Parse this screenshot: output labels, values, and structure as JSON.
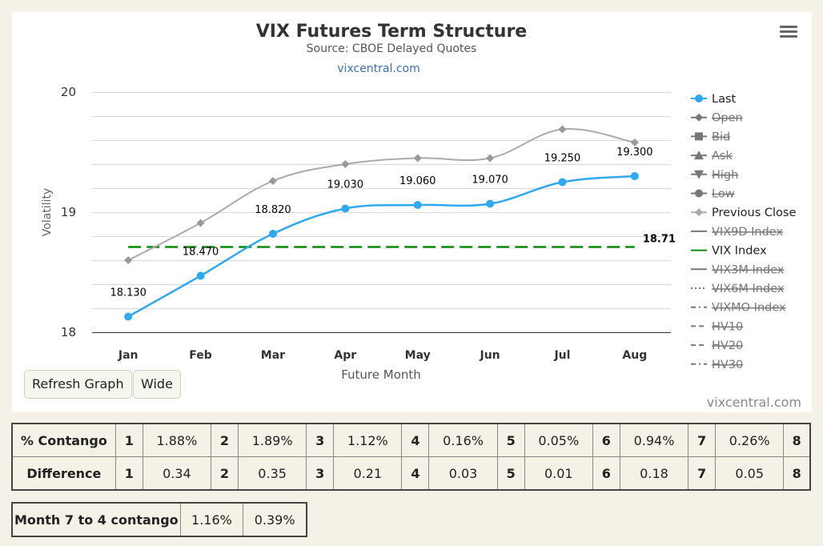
{
  "chart_data": {
    "type": "line",
    "title": "VIX Futures Term Structure",
    "subtitle": "Source: CBOE Delayed Quotes",
    "link": "vixcentral.com",
    "credits": "vixcentral.com",
    "xlabel": "Future Month",
    "ylabel": "Volatility",
    "categories": [
      "Jan",
      "Feb",
      "Mar",
      "Apr",
      "May",
      "Jun",
      "Jul",
      "Aug"
    ],
    "yticks": [
      "18",
      "19",
      "20"
    ],
    "ylim": [
      18,
      20
    ],
    "grid": true,
    "legend_position": "right",
    "series": [
      {
        "name": "Last",
        "values": [
          18.13,
          18.47,
          18.82,
          19.03,
          19.06,
          19.07,
          19.25,
          19.3
        ],
        "labels": [
          "18.130",
          "18.470",
          "18.820",
          "19.030",
          "19.060",
          "19.070",
          "19.250",
          "19.300"
        ],
        "color": "#2ea8ee"
      },
      {
        "name": "Previous Close",
        "values": [
          18.6,
          18.91,
          19.26,
          19.4,
          19.45,
          19.45,
          19.69,
          19.58
        ],
        "color": "#aaaaaa"
      },
      {
        "name": "VIX Index",
        "values": [
          18.71,
          18.71,
          18.71,
          18.71,
          18.71,
          18.71,
          18.71,
          18.71
        ],
        "label": "18.71",
        "color": "#0a8a0a"
      }
    ],
    "legend": [
      {
        "name": "Last",
        "hidden": false,
        "symbol": "dot",
        "color": "#2ea8ee"
      },
      {
        "name": "Open",
        "hidden": true,
        "symbol": "diamond",
        "color": "#666666"
      },
      {
        "name": "Bid",
        "hidden": true,
        "symbol": "square",
        "color": "#666666"
      },
      {
        "name": "Ask",
        "hidden": true,
        "symbol": "triangle",
        "color": "#666666"
      },
      {
        "name": "High",
        "hidden": true,
        "symbol": "triangle-down",
        "color": "#666666"
      },
      {
        "name": "Low",
        "hidden": true,
        "symbol": "dot",
        "color": "#666666"
      },
      {
        "name": "Previous Close",
        "hidden": false,
        "symbol": "diamond",
        "color": "#aaaaaa"
      },
      {
        "name": "VIX9D Index",
        "hidden": true,
        "symbol": "line",
        "color": "#666666"
      },
      {
        "name": "VIX Index",
        "hidden": false,
        "symbol": "line",
        "color": "#0a8a0a"
      },
      {
        "name": "VIX3M Index",
        "hidden": true,
        "symbol": "line",
        "color": "#666666"
      },
      {
        "name": "VIX6M Index",
        "hidden": true,
        "symbol": "dotted",
        "color": "#666666"
      },
      {
        "name": "VIXMO Index",
        "hidden": true,
        "symbol": "dashdot",
        "color": "#666666"
      },
      {
        "name": "HV10",
        "hidden": true,
        "symbol": "dash",
        "color": "#666666"
      },
      {
        "name": "HV20",
        "hidden": true,
        "symbol": "dash",
        "color": "#666666"
      },
      {
        "name": "HV30",
        "hidden": true,
        "symbol": "dashdot",
        "color": "#666666"
      }
    ]
  },
  "controls": {
    "menu_icon": "hamburger-menu-icon",
    "refresh_label": "Refresh Graph",
    "wide_label": "Wide"
  },
  "contango_table": {
    "rows": [
      {
        "label": "% Contango",
        "cells": [
          [
            "1",
            "1.88%"
          ],
          [
            "2",
            "1.89%"
          ],
          [
            "3",
            "1.12%"
          ],
          [
            "4",
            "0.16%"
          ],
          [
            "5",
            "0.05%"
          ],
          [
            "6",
            "0.94%"
          ],
          [
            "7",
            "0.26%"
          ]
        ],
        "last": "8"
      },
      {
        "label": "Difference",
        "cells": [
          [
            "1",
            "0.34"
          ],
          [
            "2",
            "0.35"
          ],
          [
            "3",
            "0.21"
          ],
          [
            "4",
            "0.03"
          ],
          [
            "5",
            "0.01"
          ],
          [
            "6",
            "0.18"
          ],
          [
            "7",
            "0.05"
          ]
        ],
        "last": "8"
      }
    ]
  },
  "month_table": {
    "label": "Month 7 to 4 contango",
    "values": [
      "1.16%",
      "0.39%"
    ]
  }
}
